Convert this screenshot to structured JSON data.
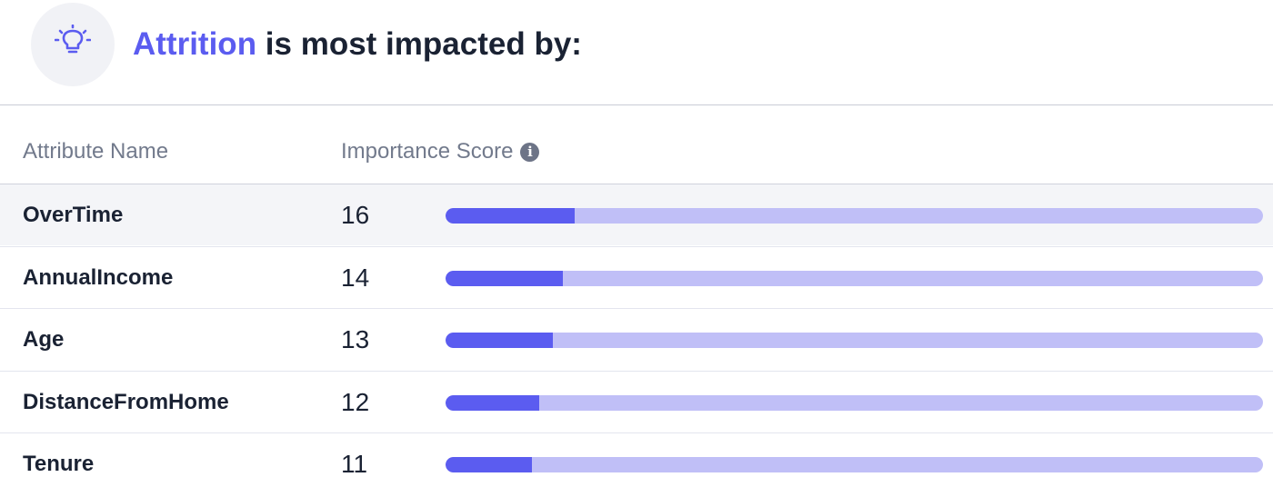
{
  "header": {
    "title_accent": "Attrition",
    "title_rest": " is most impacted by:",
    "icon": "lightbulb-icon"
  },
  "table": {
    "columns": [
      "Attribute Name",
      "Importance Score"
    ],
    "rows": [
      {
        "name": "OverTime",
        "score": "16",
        "fraction": 0.158
      },
      {
        "name": "AnnualIncome",
        "score": "14",
        "fraction": 0.144
      },
      {
        "name": "Age",
        "score": "13",
        "fraction": 0.131
      },
      {
        "name": "DistanceFromHome",
        "score": "12",
        "fraction": 0.115
      },
      {
        "name": "Tenure",
        "score": "11",
        "fraction": 0.106
      }
    ]
  },
  "colors": {
    "accent": "#5b5cf0",
    "bar_track": "#c0bff7",
    "text": "#1a2233",
    "muted": "#727a8c"
  }
}
